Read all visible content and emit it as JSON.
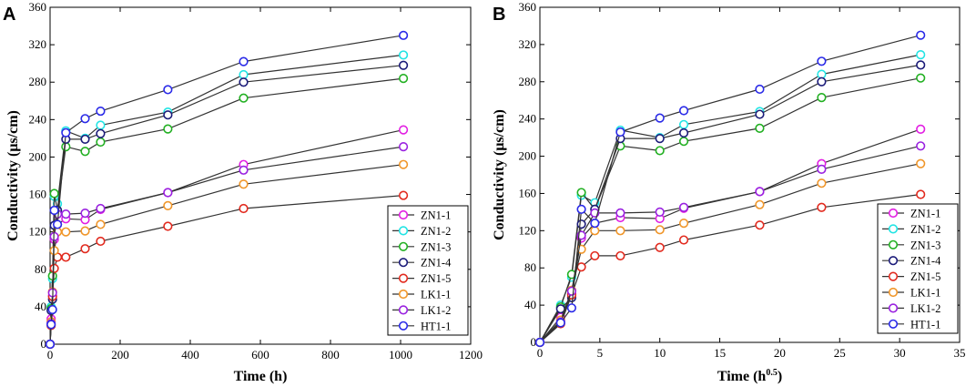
{
  "chart_data": [
    {
      "type": "line",
      "panel_label": "A",
      "xlabel": "Time (h)",
      "ylabel": "Conductivity (μs/cm)",
      "xlim": [
        0,
        1200
      ],
      "ylim": [
        0,
        360
      ],
      "xticks": [
        0,
        200,
        400,
        600,
        800,
        1000,
        1200
      ],
      "yticks": [
        0,
        40,
        80,
        120,
        160,
        200,
        240,
        280,
        320,
        360
      ],
      "x": [
        0,
        3,
        7,
        12,
        21,
        45,
        100,
        144,
        336,
        552,
        1008
      ],
      "legend": "right-bottom",
      "series": [
        {
          "name": "ZN1-1",
          "color": "#e21ee2",
          "values": [
            0,
            27,
            52,
            112,
            128,
            134,
            133,
            144,
            162,
            192,
            229
          ]
        },
        {
          "name": "ZN1-2",
          "color": "#22e4e4",
          "values": [
            0,
            40,
            70,
            158,
            150,
            228,
            220,
            234,
            248,
            288,
            309
          ]
        },
        {
          "name": "ZN1-3",
          "color": "#22b022",
          "values": [
            0,
            38,
            73,
            161,
            143,
            211,
            206,
            216,
            230,
            263,
            284
          ]
        },
        {
          "name": "ZN1-4",
          "color": "#1c1c7a",
          "values": [
            0,
            36,
            48,
            127,
            143,
            219,
            219,
            225,
            245,
            280,
            298
          ]
        },
        {
          "name": "ZN1-5",
          "color": "#e22a1e",
          "values": [
            0,
            20,
            51,
            81,
            93,
            93,
            102,
            110,
            126,
            145,
            159
          ]
        },
        {
          "name": "LK1-1",
          "color": "#f0962a",
          "values": [
            0,
            24,
            56,
            100,
            120,
            120,
            121,
            128,
            148,
            171,
            192
          ]
        },
        {
          "name": "LK1-2",
          "color": "#9a22e0",
          "values": [
            0,
            22,
            55,
            115,
            139,
            139,
            140,
            145,
            162,
            186,
            211
          ]
        },
        {
          "name": "HT1-1",
          "color": "#2a2ae8",
          "values": [
            0,
            21,
            37,
            143,
            128,
            226,
            241,
            249,
            272,
            302,
            330
          ]
        }
      ]
    },
    {
      "type": "line",
      "panel_label": "B",
      "xlabel": "Time (h",
      "xlabel_sup": "0.5",
      "xlabel_close": ")",
      "ylabel": "Conductivity (μs/cm)",
      "xlim": [
        0,
        35
      ],
      "ylim": [
        0,
        360
      ],
      "xticks": [
        0,
        5,
        10,
        15,
        20,
        25,
        30,
        35
      ],
      "yticks": [
        0,
        40,
        80,
        120,
        160,
        200,
        240,
        280,
        320,
        360
      ],
      "x": [
        0,
        1.73,
        2.65,
        3.46,
        4.58,
        6.71,
        10,
        12,
        18.33,
        23.49,
        31.75
      ],
      "legend": "right-bottom",
      "series": [
        {
          "name": "ZN1-1",
          "color": "#e21ee2",
          "values": [
            0,
            27,
            52,
            112,
            128,
            134,
            133,
            144,
            162,
            192,
            229
          ]
        },
        {
          "name": "ZN1-2",
          "color": "#22e4e4",
          "values": [
            0,
            40,
            70,
            158,
            150,
            228,
            220,
            234,
            248,
            288,
            309
          ]
        },
        {
          "name": "ZN1-3",
          "color": "#22b022",
          "values": [
            0,
            38,
            73,
            161,
            143,
            211,
            206,
            216,
            230,
            263,
            284
          ]
        },
        {
          "name": "ZN1-4",
          "color": "#1c1c7a",
          "values": [
            0,
            36,
            48,
            127,
            143,
            219,
            219,
            225,
            245,
            280,
            298
          ]
        },
        {
          "name": "ZN1-5",
          "color": "#e22a1e",
          "values": [
            0,
            20,
            51,
            81,
            93,
            93,
            102,
            110,
            126,
            145,
            159
          ]
        },
        {
          "name": "LK1-1",
          "color": "#f0962a",
          "values": [
            0,
            24,
            56,
            100,
            120,
            120,
            121,
            128,
            148,
            171,
            192
          ]
        },
        {
          "name": "LK1-2",
          "color": "#9a22e0",
          "values": [
            0,
            22,
            55,
            115,
            139,
            139,
            140,
            145,
            162,
            186,
            211
          ]
        },
        {
          "name": "HT1-1",
          "color": "#2a2ae8",
          "values": [
            0,
            21,
            37,
            143,
            128,
            226,
            241,
            249,
            272,
            302,
            330
          ]
        }
      ]
    }
  ]
}
